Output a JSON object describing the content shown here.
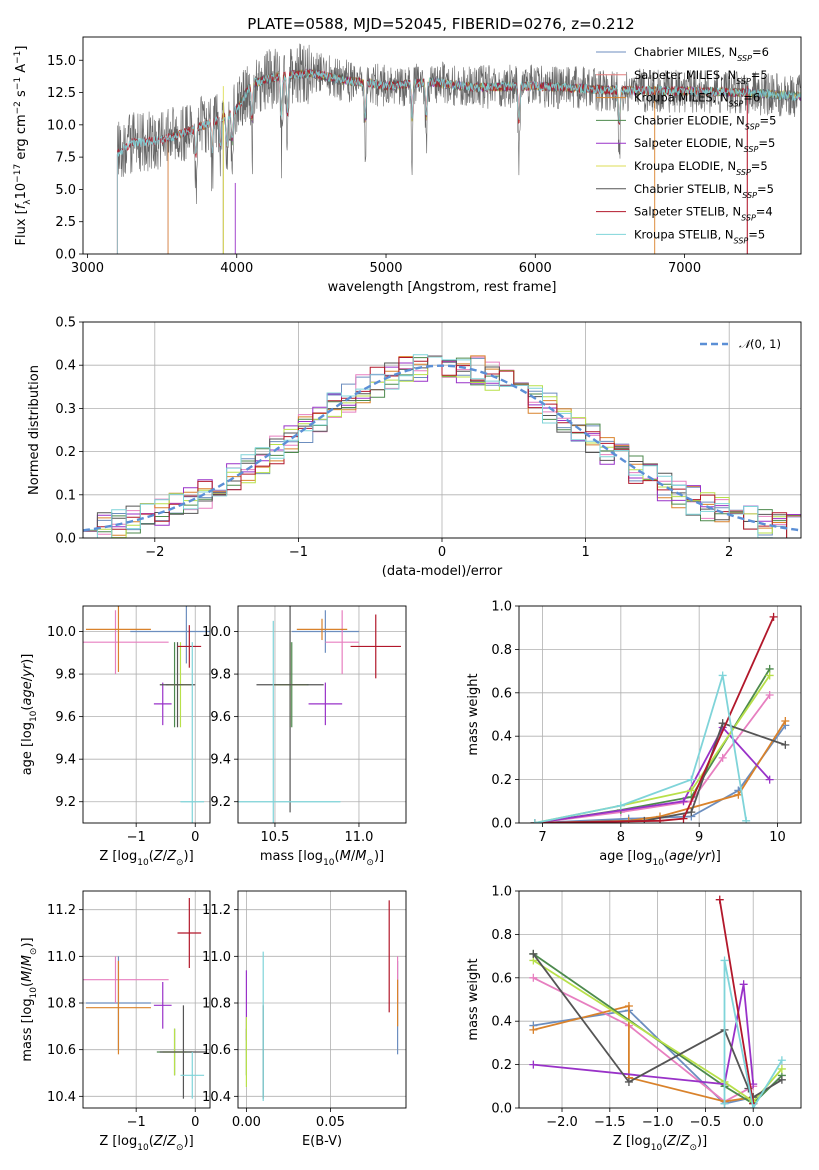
{
  "figure_title": "PLATE=0588, MJD=52045, FIBERID=0276, z=0.212",
  "colors": {
    "Chabrier MILES": "#6c8ebf",
    "Salpeter MILES": "#e67e7e",
    "Kroupa MILES": "#d9822b",
    "Chabrier ELODIE": "#4d8a4d",
    "Salpeter ELODIE": "#9932c8",
    "Kroupa ELODIE": "#dddd55",
    "Chabrier STELIB": "#555555",
    "Salpeter STELIB": "#b2182b",
    "Kroupa STELIB": "#7fd4d9",
    "normal_curve": "#5b8fd6",
    "salpeter_miles_line": "#e77fc0",
    "kroupa_elodie_line": "#b8e04a"
  },
  "chart_data": [
    {
      "id": "spectrum",
      "type": "line",
      "xlabel": "wavelength [Angstrom, rest frame]",
      "ylabel": "Flux [f_λ 10^-17 erg cm^-2 s^-1 A^-1]",
      "xlim": [
        2970,
        7780
      ],
      "ylim": [
        0,
        16.8
      ],
      "xticks": [
        3000,
        4000,
        5000,
        6000,
        7000
      ],
      "yticks": [
        0.0,
        2.5,
        5.0,
        7.5,
        10.0,
        12.5,
        15.0
      ],
      "grid": false,
      "legend": "top-right",
      "series": [
        {
          "name": "Chabrier MILES, N_SSP=6",
          "start": 3540
        },
        {
          "name": "Salpeter MILES, N_SSP=5",
          "start": 3540
        },
        {
          "name": "Kroupa MILES, N_SSP=6",
          "start": 3540
        },
        {
          "name": "Chabrier ELODIE, N_SSP=5",
          "start": 3910
        },
        {
          "name": "Salpeter ELODIE, N_SSP=5",
          "start": 3910
        },
        {
          "name": "Kroupa ELODIE, N_SSP=5",
          "start": 3910
        },
        {
          "name": "Chabrier STELIB, N_SSP=5",
          "start": 3200
        },
        {
          "name": "Salpeter STELIB, N_SSP=4",
          "start": 3200
        },
        {
          "name": "Kroupa STELIB, N_SSP=5",
          "start": 3200
        }
      ],
      "continuum": {
        "x": [
          3200,
          3300,
          3500,
          3700,
          3900,
          4000,
          4100,
          4300,
          4500,
          4700,
          5000,
          5300,
          5600,
          6000,
          6500,
          7000,
          7400,
          7780
        ],
        "y": [
          7.8,
          8.6,
          8.8,
          9.6,
          10.5,
          11.2,
          13.2,
          13.8,
          14.0,
          13.5,
          13.0,
          13.3,
          12.9,
          13.0,
          12.7,
          12.6,
          12.5,
          12.2
        ]
      }
    },
    {
      "id": "residuals",
      "type": "histogram",
      "xlabel": "(data-model)/error",
      "ylabel": "Normed distribution",
      "xlim": [
        -2.5,
        2.5
      ],
      "ylim": [
        0,
        0.5
      ],
      "xticks": [
        -2,
        -1,
        0,
        1,
        2
      ],
      "yticks": [
        0.0,
        0.1,
        0.2,
        0.3,
        0.4,
        0.5
      ],
      "grid": true,
      "legend": "top-right",
      "curve_label": "N(0,1)"
    },
    {
      "id": "age-vs-z",
      "type": "scatter",
      "xlabel": "Z [log10(Z/Z⊙)]",
      "ylabel": "age  [log10(age/yr)]",
      "xlim": [
        -1.9,
        0.25
      ],
      "ylim": [
        9.1,
        10.12
      ],
      "xticks": [
        -1,
        0
      ],
      "yticks": [
        9.2,
        9.4,
        9.6,
        9.8,
        10.0
      ],
      "grid": true,
      "points": [
        {
          "series": "Chabrier MILES",
          "x": -0.15,
          "y": 10.0,
          "xerr": 0.95,
          "yerr": 0.15
        },
        {
          "series": "Salpeter MILES",
          "x": -1.35,
          "y": 9.95,
          "xerr": 0.9,
          "yerr": 0.15
        },
        {
          "series": "Kroupa MILES",
          "x": -1.3,
          "y": 10.01,
          "xerr": 0.55,
          "yerr": 0.2
        },
        {
          "series": "Chabrier ELODIE",
          "x": -0.35,
          "y": 9.75,
          "xerr": 0.15,
          "yerr": 0.2
        },
        {
          "series": "Salpeter ELODIE",
          "x": -0.55,
          "y": 9.66,
          "xerr": 0.15,
          "yerr": 0.1
        },
        {
          "series": "Kroupa ELODIE",
          "x": -0.25,
          "y": 9.75,
          "xerr": 0.2,
          "yerr": 0.2
        },
        {
          "series": "Chabrier STELIB",
          "x": -0.3,
          "y": 9.75,
          "xerr": 0.3,
          "yerr": 0.2
        },
        {
          "series": "Salpeter STELIB",
          "x": -0.1,
          "y": 9.93,
          "xerr": 0.2,
          "yerr": 0.1
        },
        {
          "series": "Kroupa STELIB",
          "x": -0.05,
          "y": 9.2,
          "xerr": 0.2,
          "yerr": 0.75
        }
      ]
    },
    {
      "id": "age-vs-mass",
      "type": "scatter",
      "xlabel": "mass [log10(M/M⊙)]",
      "ylabel": "",
      "xlim": [
        10.28,
        11.28
      ],
      "ylim": [
        9.1,
        10.12
      ],
      "xticks": [
        10.5,
        11.0
      ],
      "yticks": [
        9.2,
        9.4,
        9.6,
        9.8,
        10.0
      ],
      "grid": true,
      "points": [
        {
          "series": "Chabrier MILES",
          "x": 10.8,
          "y": 10.0,
          "xerr": 0.2,
          "yerr": 0.1
        },
        {
          "series": "Salpeter MILES",
          "x": 10.9,
          "y": 9.95,
          "xerr": 0.1,
          "yerr": 0.15
        },
        {
          "series": "Kroupa MILES",
          "x": 10.78,
          "y": 10.01,
          "xerr": 0.15,
          "yerr": 0.05
        },
        {
          "series": "Chabrier ELODIE",
          "x": 10.6,
          "y": 9.75,
          "xerr": 0.1,
          "yerr": 0.2
        },
        {
          "series": "Salpeter ELODIE",
          "x": 10.8,
          "y": 9.66,
          "xerr": 0.1,
          "yerr": 0.1
        },
        {
          "series": "Kroupa ELODIE",
          "x": 10.59,
          "y": 9.75,
          "xerr": 0.1,
          "yerr": 0.2
        },
        {
          "series": "Chabrier STELIB",
          "x": 10.59,
          "y": 9.75,
          "xerr": 0.2,
          "yerr": 0.6
        },
        {
          "series": "Salpeter STELIB",
          "x": 11.1,
          "y": 9.93,
          "xerr": 0.15,
          "yerr": 0.15
        },
        {
          "series": "Kroupa STELIB",
          "x": 10.49,
          "y": 9.2,
          "xerr": 0.4,
          "yerr": 0.85
        }
      ]
    },
    {
      "id": "weight-vs-age",
      "type": "line",
      "xlabel": "age  [log10(age/yr)]",
      "ylabel": "mass weight",
      "xlim": [
        6.7,
        10.3
      ],
      "ylim": [
        0,
        1
      ],
      "xticks": [
        7,
        8,
        9,
        10
      ],
      "yticks": [
        0.0,
        0.2,
        0.4,
        0.6,
        0.8,
        1.0
      ],
      "grid": true,
      "series": [
        {
          "name": "Chabrier MILES",
          "x": [
            6.9,
            8.1,
            8.9,
            9.5,
            10.1
          ],
          "y": [
            0.0,
            0.02,
            0.03,
            0.15,
            0.45
          ]
        },
        {
          "name": "Salpeter MILES",
          "x": [
            6.9,
            8.0,
            8.9,
            9.3,
            9.9
          ],
          "y": [
            0.0,
            0.05,
            0.1,
            0.3,
            0.59
          ]
        },
        {
          "name": "Kroupa MILES",
          "x": [
            6.9,
            8.1,
            8.5,
            9.5,
            10.1
          ],
          "y": [
            0.0,
            0.01,
            0.03,
            0.13,
            0.47
          ]
        },
        {
          "name": "Chabrier ELODIE",
          "x": [
            6.9,
            8.0,
            8.9,
            9.9
          ],
          "y": [
            0.0,
            0.06,
            0.12,
            0.71
          ]
        },
        {
          "name": "Salpeter ELODIE",
          "x": [
            6.9,
            8.8,
            9.3,
            9.9
          ],
          "y": [
            0.0,
            0.1,
            0.44,
            0.2
          ]
        },
        {
          "name": "Kroupa ELODIE",
          "x": [
            6.9,
            8.0,
            8.9,
            9.9
          ],
          "y": [
            0.0,
            0.08,
            0.15,
            0.68
          ]
        },
        {
          "name": "Chabrier STELIB",
          "x": [
            6.9,
            8.3,
            8.9,
            9.3,
            10.1
          ],
          "y": [
            0.0,
            0.01,
            0.05,
            0.46,
            0.36
          ]
        },
        {
          "name": "Salpeter STELIB",
          "x": [
            6.9,
            8.5,
            8.8,
            9.95
          ],
          "y": [
            0.0,
            0.01,
            0.02,
            0.95
          ]
        },
        {
          "name": "Kroupa STELIB",
          "x": [
            6.9,
            8.0,
            8.9,
            9.3,
            9.6
          ],
          "y": [
            0.0,
            0.08,
            0.2,
            0.68,
            0.01
          ]
        }
      ]
    },
    {
      "id": "mass-vs-z",
      "type": "scatter",
      "xlabel": "Z [log10(Z/Z⊙)]",
      "ylabel": "mass [log10(M/M⊙)]",
      "xlim": [
        -1.9,
        0.25
      ],
      "ylim": [
        10.35,
        11.28
      ],
      "xticks": [
        -1,
        0
      ],
      "yticks": [
        10.4,
        10.6,
        10.8,
        11.0,
        11.2
      ],
      "grid": true,
      "points": [
        {
          "series": "Chabrier MILES",
          "x": -1.3,
          "y": 10.8,
          "xerr": 0.55,
          "yerr": 0.2
        },
        {
          "series": "Salpeter MILES",
          "x": -1.35,
          "y": 10.9,
          "xerr": 0.9,
          "yerr": 0.1
        },
        {
          "series": "Kroupa MILES",
          "x": -1.3,
          "y": 10.78,
          "xerr": 0.55,
          "yerr": 0.2
        },
        {
          "series": "Chabrier ELODIE",
          "x": -0.35,
          "y": 10.59,
          "xerr": 0.3,
          "yerr": 0.1
        },
        {
          "series": "Salpeter ELODIE",
          "x": -0.55,
          "y": 10.79,
          "xerr": 0.15,
          "yerr": 0.1
        },
        {
          "series": "Kroupa ELODIE",
          "x": -0.35,
          "y": 10.59,
          "xerr": 0.2,
          "yerr": 0.1
        },
        {
          "series": "Chabrier STELIB",
          "x": -0.2,
          "y": 10.59,
          "xerr": 0.4,
          "yerr": 0.2
        },
        {
          "series": "Salpeter STELIB",
          "x": -0.1,
          "y": 11.1,
          "xerr": 0.2,
          "yerr": 0.15
        },
        {
          "series": "Kroupa STELIB",
          "x": -0.05,
          "y": 10.49,
          "xerr": 0.2,
          "yerr": 0.1
        }
      ]
    },
    {
      "id": "mass-vs-ebv",
      "type": "scatter",
      "xlabel": "E(B-V)",
      "ylabel": "",
      "xlim": [
        -0.005,
        0.095
      ],
      "ylim": [
        10.35,
        11.28
      ],
      "xticks": [
        0.0,
        0.05
      ],
      "yticks": [
        10.4,
        10.6,
        10.8,
        11.0,
        11.2
      ],
      "grid": true,
      "points": [
        {
          "series": "Chabrier MILES",
          "x": 0.09,
          "y": 10.78,
          "xerr": 0,
          "yerr": 0.2
        },
        {
          "series": "Salpeter MILES",
          "x": 0.09,
          "y": 10.9,
          "xerr": 0,
          "yerr": 0.1
        },
        {
          "series": "Kroupa MILES",
          "x": 0.09,
          "y": 10.8,
          "xerr": 0,
          "yerr": 0.1
        },
        {
          "series": "Chabrier ELODIE",
          "x": 0.0,
          "y": 10.59,
          "xerr": 0,
          "yerr": 0.1
        },
        {
          "series": "Salpeter ELODIE",
          "x": 0.0,
          "y": 10.79,
          "xerr": 0,
          "yerr": 0.15
        },
        {
          "series": "Kroupa ELODIE",
          "x": 0.0,
          "y": 10.59,
          "xerr": 0,
          "yerr": 0.15
        },
        {
          "series": "Chabrier STELIB",
          "x": 0.01,
          "y": 10.59,
          "xerr": 0,
          "yerr": 0.2
        },
        {
          "series": "Salpeter STELIB",
          "x": 0.085,
          "y": 11.0,
          "xerr": 0,
          "yerr": 0.24
        },
        {
          "series": "Kroupa STELIB",
          "x": 0.01,
          "y": 10.7,
          "xerr": 0,
          "yerr": 0.32
        }
      ]
    },
    {
      "id": "weight-vs-z",
      "type": "line",
      "xlabel": "Z [log10(Z/Z⊙)]",
      "ylabel": "mass weight",
      "xlim": [
        -2.45,
        0.5
      ],
      "ylim": [
        0,
        1
      ],
      "xticks": [
        -2.0,
        -1.5,
        -1.0,
        -0.5,
        0.0
      ],
      "yticks": [
        0.0,
        0.2,
        0.4,
        0.6,
        0.8,
        1.0
      ],
      "grid": true,
      "series": [
        {
          "name": "Chabrier MILES",
          "x": [
            -2.3,
            -1.3,
            -0.3,
            0.0
          ],
          "y": [
            0.38,
            0.45,
            0.02,
            0.05
          ]
        },
        {
          "name": "Salpeter MILES",
          "x": [
            -2.3,
            -1.3,
            -0.3,
            0.0
          ],
          "y": [
            0.6,
            0.38,
            0.03,
            0.1
          ]
        },
        {
          "name": "Kroupa MILES",
          "x": [
            -2.3,
            -1.3,
            -1.3,
            -0.3,
            0.0
          ],
          "y": [
            0.36,
            0.47,
            0.14,
            0.03,
            0.05
          ]
        },
        {
          "name": "Chabrier ELODIE",
          "x": [
            -2.3,
            -0.3,
            0.0,
            0.3
          ],
          "y": [
            0.71,
            0.1,
            0.02,
            0.15
          ]
        },
        {
          "name": "Salpeter ELODIE",
          "x": [
            -2.3,
            -0.3,
            -0.1,
            0.0
          ],
          "y": [
            0.2,
            0.11,
            0.57,
            0.11
          ]
        },
        {
          "name": "Kroupa ELODIE",
          "x": [
            -2.3,
            -0.3,
            0.0,
            0.3
          ],
          "y": [
            0.68,
            0.12,
            0.03,
            0.18
          ]
        },
        {
          "name": "Chabrier STELIB",
          "x": [
            -2.3,
            -1.3,
            -0.3,
            -0.05,
            0.0,
            0.3
          ],
          "y": [
            0.71,
            0.12,
            0.36,
            0.09,
            0.05,
            0.13
          ]
        },
        {
          "name": "Salpeter STELIB",
          "x": [
            -0.35,
            0.0
          ],
          "y": [
            0.96,
            0.02
          ]
        },
        {
          "name": "Kroupa STELIB",
          "x": [
            -0.3,
            -0.3,
            0.0,
            0.3
          ],
          "y": [
            0.02,
            0.68,
            0.0,
            0.22
          ]
        }
      ]
    }
  ]
}
